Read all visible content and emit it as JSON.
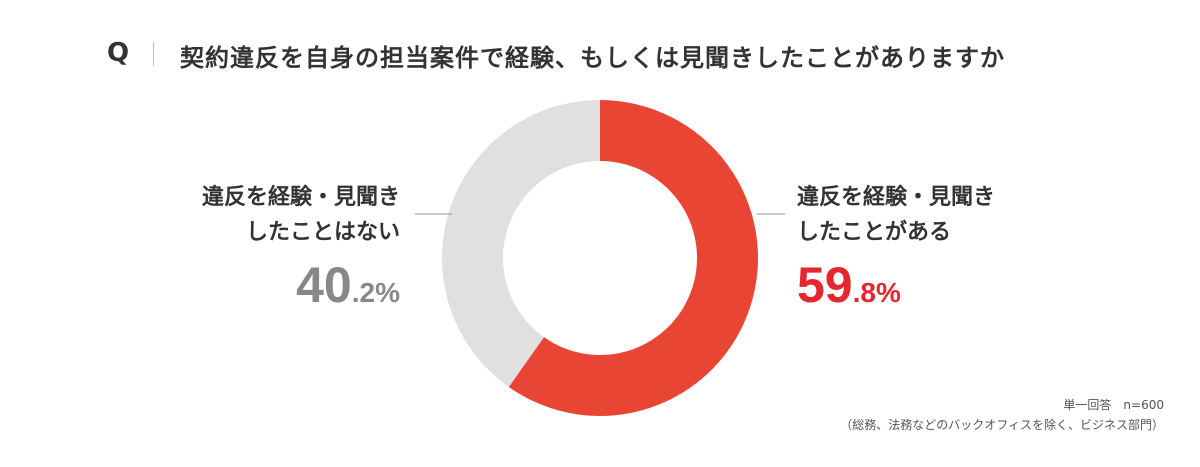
{
  "chart_data": {
    "type": "donut",
    "title_prefix": "Q",
    "title": "契約違反を自身の担当案件で経験、もしくは見聞きしたことがありますか",
    "categories": [
      "違反を経験・見聞きしたことがある",
      "違反を経験・見聞きしたことはない"
    ],
    "values": [
      59.8,
      40.2
    ],
    "value_labels": [
      "59.8%",
      "40.2%"
    ],
    "colors": [
      "#e84535",
      "#e0e0e0"
    ],
    "label_colors": [
      "#e5262e",
      "#888888"
    ],
    "notes": [
      "単一回答　n=600",
      "（総務、法務などのバックオフィスを除く、ビジネス部門）"
    ]
  }
}
